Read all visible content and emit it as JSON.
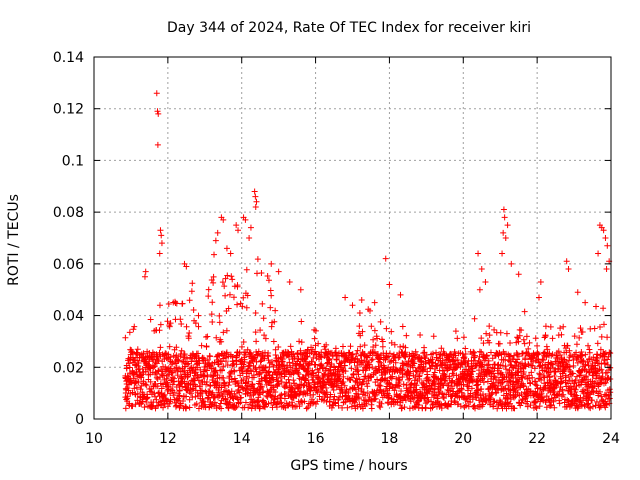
{
  "chart_data": {
    "type": "scatter",
    "title": "Day 344 of 2024, Rate Of TEC Index for receiver kiri",
    "xlabel": "GPS time / hours",
    "ylabel": "ROTI / TECUs",
    "xlim": [
      10,
      24
    ],
    "ylim": [
      0,
      0.14
    ],
    "xticks": [
      10,
      12,
      14,
      16,
      18,
      20,
      22,
      24
    ],
    "yticks": [
      0,
      0.02,
      0.04,
      0.06,
      0.08,
      0.1,
      0.12,
      0.14
    ],
    "xtick_labels": [
      "10",
      "12",
      "14",
      "16",
      "18",
      "20",
      "22",
      "24"
    ],
    "ytick_labels": [
      "0",
      "0.02",
      "0.04",
      "0.06",
      "0.08",
      "0.1",
      "0.12",
      "0.14"
    ],
    "grid": true,
    "marker": "+",
    "color": "#ff0000",
    "series": [
      {
        "name": "ROTI",
        "note": "dense band of points between 10.8h and 24h; representative sample",
        "points": [
          [
            11.7,
            0.126
          ],
          [
            11.72,
            0.119
          ],
          [
            11.74,
            0.118
          ],
          [
            11.73,
            0.106
          ],
          [
            11.8,
            0.073
          ],
          [
            11.82,
            0.071
          ],
          [
            11.84,
            0.068
          ],
          [
            11.78,
            0.064
          ],
          [
            11.4,
            0.057
          ],
          [
            11.38,
            0.055
          ],
          [
            12.45,
            0.06
          ],
          [
            12.5,
            0.059
          ],
          [
            13.45,
            0.078
          ],
          [
            13.5,
            0.077
          ],
          [
            13.35,
            0.072
          ],
          [
            13.3,
            0.069
          ],
          [
            13.6,
            0.066
          ],
          [
            13.7,
            0.064
          ],
          [
            13.85,
            0.075
          ],
          [
            13.9,
            0.073
          ],
          [
            14.05,
            0.078
          ],
          [
            14.1,
            0.077
          ],
          [
            14.35,
            0.088
          ],
          [
            14.37,
            0.086
          ],
          [
            14.4,
            0.084
          ],
          [
            14.38,
            0.082
          ],
          [
            14.25,
            0.074
          ],
          [
            14.2,
            0.07
          ],
          [
            14.8,
            0.06
          ],
          [
            15.0,
            0.057
          ],
          [
            15.3,
            0.053
          ],
          [
            15.6,
            0.05
          ],
          [
            16.8,
            0.047
          ],
          [
            17.0,
            0.044
          ],
          [
            17.2,
            0.041
          ],
          [
            17.25,
            0.046
          ],
          [
            17.6,
            0.045
          ],
          [
            17.9,
            0.062
          ],
          [
            18.0,
            0.052
          ],
          [
            18.3,
            0.048
          ],
          [
            19.2,
            0.032
          ],
          [
            19.8,
            0.034
          ],
          [
            20.4,
            0.064
          ],
          [
            20.5,
            0.058
          ],
          [
            20.6,
            0.053
          ],
          [
            20.45,
            0.05
          ],
          [
            21.1,
            0.081
          ],
          [
            21.12,
            0.078
          ],
          [
            21.08,
            0.072
          ],
          [
            21.2,
            0.075
          ],
          [
            21.15,
            0.07
          ],
          [
            21.05,
            0.064
          ],
          [
            21.3,
            0.06
          ],
          [
            21.5,
            0.056
          ],
          [
            22.1,
            0.053
          ],
          [
            22.05,
            0.047
          ],
          [
            22.8,
            0.061
          ],
          [
            22.85,
            0.058
          ],
          [
            23.1,
            0.049
          ],
          [
            23.3,
            0.045
          ],
          [
            23.7,
            0.075
          ],
          [
            23.75,
            0.074
          ],
          [
            23.8,
            0.073
          ],
          [
            23.85,
            0.07
          ],
          [
            23.9,
            0.067
          ],
          [
            23.65,
            0.064
          ],
          [
            23.95,
            0.061
          ],
          [
            23.88,
            0.058
          ]
        ]
      }
    ]
  }
}
